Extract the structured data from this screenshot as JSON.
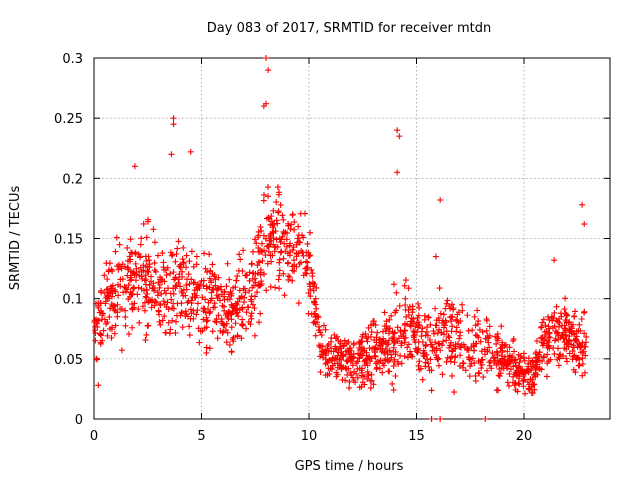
{
  "chart_data": {
    "type": "scatter",
    "title": "Day 083 of 2017, SRMTID for receiver mtdn",
    "xlabel": "GPS time / hours",
    "ylabel": "SRMTID / TECUs",
    "xlim": [
      0,
      24
    ],
    "ylim": [
      0,
      0.3
    ],
    "xticks": [
      0,
      5,
      10,
      15,
      20
    ],
    "xtick_labels": [
      "0",
      "5",
      "10",
      "15",
      "20"
    ],
    "yticks": [
      0,
      0.05,
      0.1,
      0.15,
      0.2,
      0.25,
      0.3
    ],
    "ytick_labels": [
      "0",
      "0.05",
      "0.1",
      "0.15",
      "0.2",
      "0.25",
      "0.3"
    ],
    "grid": true,
    "marker": "+",
    "series": [
      {
        "name": "SRMTID",
        "color": "#ff0000",
        "profile_hours": [
          0,
          0.5,
          1,
          1.5,
          2,
          2.5,
          3,
          3.5,
          4,
          4.5,
          5,
          5.5,
          6,
          6.5,
          7,
          7.5,
          8,
          8.5,
          9,
          9.5,
          10,
          10.5,
          11,
          11.5,
          12,
          12.5,
          13,
          13.5,
          14,
          14.5,
          15,
          15.5,
          16,
          16.5,
          17,
          17.5,
          18,
          18.5,
          19,
          19.5,
          20,
          20.5,
          21,
          21.5,
          22,
          22.5,
          23
        ],
        "profile_median": [
          0.08,
          0.09,
          0.1,
          0.11,
          0.12,
          0.115,
          0.11,
          0.1,
          0.12,
          0.1,
          0.095,
          0.1,
          0.09,
          0.09,
          0.1,
          0.11,
          0.15,
          0.15,
          0.14,
          0.14,
          0.13,
          0.06,
          0.05,
          0.05,
          0.045,
          0.05,
          0.055,
          0.06,
          0.07,
          0.08,
          0.07,
          0.06,
          0.07,
          0.065,
          0.065,
          0.06,
          0.06,
          0.055,
          0.05,
          0.045,
          0.035,
          0.04,
          0.065,
          0.075,
          0.07,
          0.06,
          0.06
        ],
        "profile_spread": [
          0.025,
          0.03,
          0.03,
          0.035,
          0.035,
          0.035,
          0.035,
          0.03,
          0.035,
          0.03,
          0.03,
          0.03,
          0.025,
          0.03,
          0.03,
          0.035,
          0.035,
          0.035,
          0.035,
          0.03,
          0.03,
          0.02,
          0.018,
          0.018,
          0.015,
          0.02,
          0.02,
          0.025,
          0.03,
          0.03,
          0.025,
          0.025,
          0.025,
          0.025,
          0.025,
          0.022,
          0.022,
          0.02,
          0.018,
          0.015,
          0.012,
          0.015,
          0.02,
          0.022,
          0.022,
          0.02,
          0.02
        ],
        "notable_points": [
          {
            "x": 8.0,
            "y": 0.3
          },
          {
            "x": 8.1,
            "y": 0.29
          },
          {
            "x": 8.0,
            "y": 0.262
          },
          {
            "x": 7.9,
            "y": 0.26
          },
          {
            "x": 3.7,
            "y": 0.25
          },
          {
            "x": 3.7,
            "y": 0.245
          },
          {
            "x": 14.1,
            "y": 0.24
          },
          {
            "x": 14.2,
            "y": 0.235
          },
          {
            "x": 4.5,
            "y": 0.222
          },
          {
            "x": 3.6,
            "y": 0.22
          },
          {
            "x": 1.9,
            "y": 0.21
          },
          {
            "x": 14.1,
            "y": 0.205
          },
          {
            "x": 16.1,
            "y": 0.182
          },
          {
            "x": 22.7,
            "y": 0.178
          },
          {
            "x": 22.8,
            "y": 0.162
          },
          {
            "x": 21.4,
            "y": 0.132
          },
          {
            "x": 15.9,
            "y": 0.135
          },
          {
            "x": 0.2,
            "y": 0.028
          },
          {
            "x": 15.7,
            "y": 0
          },
          {
            "x": 16.1,
            "y": 0
          },
          {
            "x": 18.2,
            "y": 0
          }
        ]
      }
    ]
  }
}
